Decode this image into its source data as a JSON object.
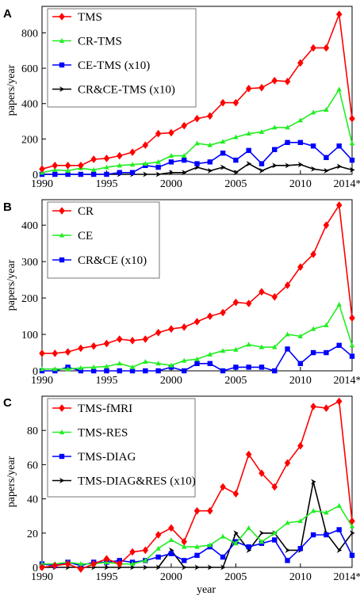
{
  "chart_data": [
    {
      "type": "line",
      "panel_label": "A",
      "ylabel": "papers/year",
      "xlabel": "",
      "xlim": [
        1990,
        2014
      ],
      "ylim": [
        0,
        950
      ],
      "yticks": [
        0,
        200,
        400,
        600,
        800
      ],
      "xticks": [
        1990,
        1995,
        2000,
        2005,
        2010,
        2014
      ],
      "xtick_labels": [
        "1990",
        "1995",
        "2000",
        "2005",
        "2010",
        "2014*"
      ],
      "legend_position": "top-left",
      "x": [
        1990,
        1991,
        1992,
        1993,
        1994,
        1995,
        1996,
        1997,
        1998,
        1999,
        2000,
        2001,
        2002,
        2003,
        2004,
        2005,
        2006,
        2007,
        2008,
        2009,
        2010,
        2011,
        2012,
        2013,
        2014
      ],
      "series": [
        {
          "name": "TMS",
          "color": "#ff0000",
          "marker": "diamond",
          "values": [
            30,
            50,
            50,
            50,
            85,
            90,
            105,
            125,
            165,
            230,
            235,
            275,
            315,
            330,
            405,
            405,
            485,
            490,
            530,
            525,
            630,
            715,
            715,
            905,
            315
          ]
        },
        {
          "name": "CR-TMS",
          "color": "#22ee22",
          "marker": "triangle",
          "values": [
            10,
            25,
            20,
            35,
            25,
            40,
            50,
            55,
            60,
            70,
            105,
            105,
            175,
            165,
            185,
            210,
            230,
            240,
            265,
            265,
            305,
            350,
            365,
            480,
            175
          ]
        },
        {
          "name": "CE-TMS (x10)",
          "color": "#0000ff",
          "marker": "square",
          "values": [
            0,
            0,
            0,
            0,
            0,
            0,
            10,
            10,
            50,
            40,
            70,
            80,
            60,
            70,
            120,
            80,
            135,
            60,
            140,
            180,
            180,
            160,
            95,
            160,
            80
          ]
        },
        {
          "name": "CR&CE-TMS (x10)",
          "color": "#000000",
          "marker": "arrow",
          "values": [
            0,
            0,
            0,
            0,
            0,
            0,
            0,
            0,
            0,
            0,
            10,
            10,
            40,
            20,
            40,
            10,
            60,
            20,
            50,
            50,
            55,
            30,
            20,
            45,
            25
          ]
        }
      ]
    },
    {
      "type": "line",
      "panel_label": "B",
      "ylabel": "papers/year",
      "xlabel": "",
      "xlim": [
        1990,
        2014
      ],
      "ylim": [
        0,
        470
      ],
      "yticks": [
        0,
        100,
        200,
        300,
        400
      ],
      "xticks": [
        1990,
        1995,
        2000,
        2005,
        2010,
        2014
      ],
      "xtick_labels": [
        "1990",
        "1995",
        "2000",
        "2005",
        "2010",
        "2014*"
      ],
      "legend_position": "top-left",
      "x": [
        1990,
        1991,
        1992,
        1993,
        1994,
        1995,
        1996,
        1997,
        1998,
        1999,
        2000,
        2001,
        2002,
        2003,
        2004,
        2005,
        2006,
        2007,
        2008,
        2009,
        2010,
        2011,
        2012,
        2013,
        2014
      ],
      "series": [
        {
          "name": "CR",
          "color": "#ff0000",
          "marker": "diamond",
          "values": [
            48,
            48,
            52,
            62,
            68,
            75,
            87,
            83,
            87,
            105,
            115,
            120,
            135,
            150,
            160,
            188,
            185,
            217,
            203,
            235,
            285,
            320,
            400,
            455,
            145
          ]
        },
        {
          "name": "CE",
          "color": "#22ee22",
          "marker": "triangle",
          "values": [
            5,
            5,
            5,
            8,
            10,
            12,
            20,
            10,
            25,
            20,
            15,
            28,
            32,
            45,
            55,
            58,
            72,
            65,
            65,
            100,
            95,
            115,
            125,
            182,
            70
          ]
        },
        {
          "name": "CR&CE (x10)",
          "color": "#0000ff",
          "marker": "square",
          "values": [
            0,
            0,
            10,
            0,
            0,
            0,
            0,
            0,
            0,
            0,
            10,
            0,
            20,
            20,
            0,
            10,
            10,
            10,
            0,
            60,
            20,
            50,
            50,
            70,
            40
          ]
        }
      ]
    },
    {
      "type": "line",
      "panel_label": "C",
      "ylabel": "papers/year",
      "xlabel": "year",
      "xlim": [
        1990,
        2014
      ],
      "ylim": [
        0,
        100
      ],
      "yticks": [
        0,
        20,
        40,
        60,
        80
      ],
      "xticks": [
        1990,
        1995,
        2000,
        2005,
        2010,
        2014
      ],
      "xtick_labels": [
        "1990",
        "1995",
        "2000",
        "2005",
        "2010",
        "2014*"
      ],
      "legend_position": "top-left",
      "x": [
        1990,
        1991,
        1992,
        1993,
        1994,
        1995,
        1996,
        1997,
        1998,
        1999,
        2000,
        2001,
        2002,
        2003,
        2004,
        2005,
        2006,
        2007,
        2008,
        2009,
        2010,
        2011,
        2012,
        2013,
        2014
      ],
      "series": [
        {
          "name": "TMS-fMRI",
          "color": "#ff0000",
          "marker": "diamond",
          "values": [
            0,
            1,
            2,
            -1,
            2,
            5,
            2,
            9,
            10,
            19,
            23,
            15,
            33,
            33,
            47,
            43,
            66,
            55,
            47,
            61,
            71,
            94,
            93,
            97,
            27
          ]
        },
        {
          "name": "TMS-RES",
          "color": "#22ee22",
          "marker": "triangle",
          "values": [
            2,
            2,
            3,
            2,
            2,
            3,
            2,
            2,
            4,
            11,
            16,
            12,
            12,
            13,
            18,
            14,
            23,
            15,
            20,
            26,
            27,
            33,
            32,
            36,
            24
          ]
        },
        {
          "name": "TMS-DIAG",
          "color": "#0000ff",
          "marker": "square",
          "values": [
            2,
            1,
            3,
            1,
            3,
            3,
            4,
            3,
            4,
            6,
            8,
            4,
            7,
            12,
            6,
            15,
            12,
            14,
            16,
            4,
            11,
            19,
            19,
            22,
            7
          ]
        },
        {
          "name": "TMS-DIAG&RES (x10)",
          "color": "#000000",
          "marker": "arrow",
          "values": [
            0,
            0,
            0,
            0,
            0,
            0,
            0,
            0,
            0,
            0,
            10,
            0,
            0,
            0,
            0,
            20,
            10,
            20,
            20,
            10,
            10,
            50,
            20,
            10,
            20
          ]
        }
      ]
    }
  ]
}
